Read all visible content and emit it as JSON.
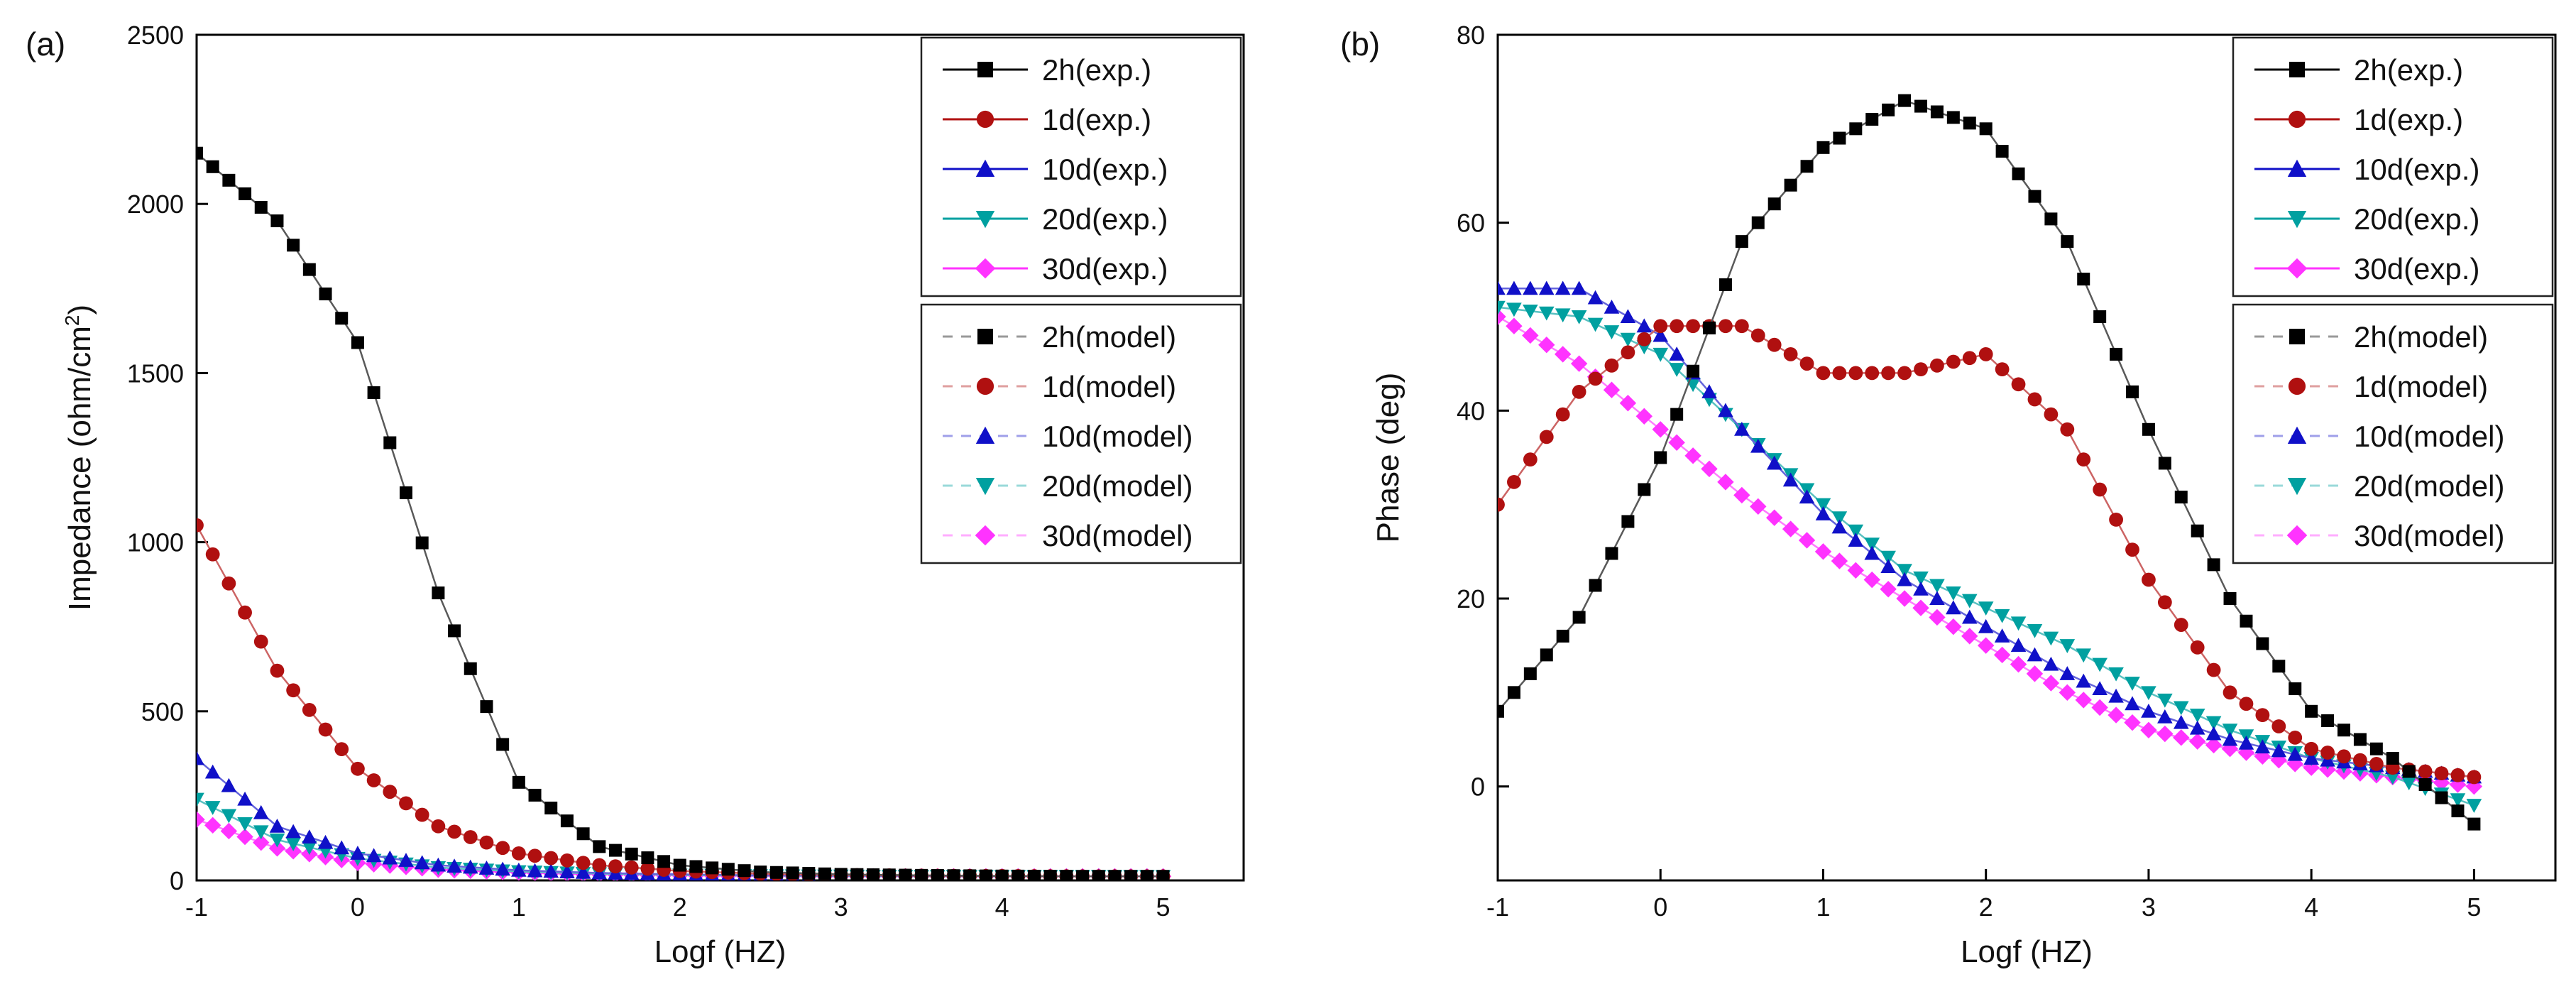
{
  "chart_data": [
    {
      "panel_label": "(a)",
      "type": "scatter",
      "xlabel": "Logf (HZ)",
      "ylabel": "Impedance (ohm/cm",
      "ylabel_superscript": "2",
      "ylabel_suffix": ")",
      "xlim": [
        -1,
        5.5
      ],
      "ylim": [
        0,
        2500
      ],
      "xticks": [
        -1,
        0,
        1,
        2,
        3,
        4,
        5
      ],
      "yticks": [
        0,
        500,
        1000,
        1500,
        2000,
        2500
      ],
      "legend_placement": "top-right",
      "series": [
        {
          "name": "2h(exp.)",
          "model_name": "2h(model)",
          "color": "#000000",
          "marker": "square",
          "x": [
            -1,
            -0.5,
            0,
            0.5,
            1,
            1.5,
            2,
            2.5,
            3,
            3.5,
            4,
            4.5,
            5
          ],
          "y": [
            2150,
            1950,
            1590,
            850,
            290,
            100,
            45,
            25,
            18,
            15,
            13,
            12,
            12
          ]
        },
        {
          "name": "1d(exp.)",
          "model_name": "1d(model)",
          "color": "#b01010",
          "marker": "circle",
          "x": [
            -1,
            -0.5,
            0,
            0.5,
            1,
            1.5,
            2,
            2.5,
            3,
            3.5,
            4,
            4.5,
            5
          ],
          "y": [
            1050,
            620,
            330,
            160,
            80,
            45,
            28,
            20,
            16,
            14,
            13,
            12,
            12
          ]
        },
        {
          "name": "10d(exp.)",
          "model_name": "10d(model)",
          "color": "#1010c8",
          "marker": "triangle-up",
          "x": [
            -1,
            -0.5,
            0,
            0.5,
            1,
            1.5,
            2,
            2.5,
            3,
            3.5,
            4,
            4.5,
            5
          ],
          "y": [
            360,
            160,
            80,
            45,
            30,
            22,
            18,
            15,
            14,
            13,
            12,
            12,
            12
          ]
        },
        {
          "name": "20d(exp.)",
          "model_name": "20d(model)",
          "color": "#00a0a0",
          "marker": "triangle-down",
          "x": [
            -1,
            -0.5,
            0,
            0.5,
            1,
            1.5,
            2,
            2.5,
            3,
            3.5,
            4,
            4.5,
            5
          ],
          "y": [
            240,
            120,
            65,
            38,
            26,
            20,
            16,
            14,
            13,
            12,
            12,
            12,
            12
          ]
        },
        {
          "name": "30d(exp.)",
          "model_name": "30d(model)",
          "color": "#ff33ff",
          "marker": "diamond",
          "x": [
            -1,
            -0.5,
            0,
            0.5,
            1,
            1.5,
            2,
            2.5,
            3,
            3.5,
            4,
            4.5,
            5
          ],
          "y": [
            180,
            95,
            52,
            32,
            23,
            18,
            15,
            13,
            12,
            12,
            12,
            12,
            12
          ]
        }
      ]
    },
    {
      "panel_label": "(b)",
      "type": "scatter",
      "xlabel": "Logf (HZ)",
      "ylabel": "Phase (deg)",
      "xlim": [
        -1,
        5.5
      ],
      "ylim": [
        -10,
        80
      ],
      "xticks": [
        -1,
        0,
        1,
        2,
        3,
        4,
        5
      ],
      "yticks": [
        0,
        20,
        40,
        60,
        80
      ],
      "legend_placement": "top-right",
      "series": [
        {
          "name": "2h(exp.)",
          "model_name": "2h(model)",
          "color": "#000000",
          "marker": "square",
          "x": [
            -1,
            -0.5,
            0,
            0.5,
            1,
            1.5,
            2,
            2.5,
            3,
            3.5,
            4,
            4.5,
            5
          ],
          "y": [
            8,
            18,
            35,
            58,
            68,
            73,
            70,
            58,
            38,
            20,
            8,
            3,
            -4
          ]
        },
        {
          "name": "1d(exp.)",
          "model_name": "1d(model)",
          "color": "#b01010",
          "marker": "circle",
          "x": [
            -1,
            -0.5,
            0,
            0.5,
            1,
            1.5,
            2,
            2.5,
            3,
            3.5,
            4,
            4.5,
            5
          ],
          "y": [
            30,
            42,
            49,
            49,
            44,
            44,
            46,
            38,
            22,
            10,
            4,
            2,
            1
          ]
        },
        {
          "name": "10d(exp.)",
          "model_name": "10d(model)",
          "color": "#1010c8",
          "marker": "triangle-up",
          "x": [
            -1,
            -0.5,
            0,
            0.5,
            1,
            1.5,
            2,
            2.5,
            3,
            3.5,
            4,
            4.5,
            5
          ],
          "y": [
            53,
            53,
            48,
            38,
            29,
            22,
            17,
            12,
            8,
            5,
            3,
            2,
            1
          ]
        },
        {
          "name": "20d(exp.)",
          "model_name": "20d(model)",
          "color": "#00a0a0",
          "marker": "triangle-down",
          "x": [
            -1,
            -0.5,
            0,
            0.5,
            1,
            1.5,
            2,
            2.5,
            3,
            3.5,
            4,
            4.5,
            5
          ],
          "y": [
            51,
            50,
            46,
            38,
            30,
            23,
            19,
            15,
            10,
            6,
            3,
            1,
            -2
          ]
        },
        {
          "name": "30d(exp.)",
          "model_name": "30d(model)",
          "color": "#ff33ff",
          "marker": "diamond",
          "x": [
            -1,
            -0.5,
            0,
            0.5,
            1,
            1.5,
            2,
            2.5,
            3,
            3.5,
            4,
            4.5,
            5
          ],
          "y": [
            50,
            45,
            38,
            31,
            25,
            20,
            15,
            10,
            6,
            4,
            2,
            1,
            0
          ]
        }
      ]
    }
  ]
}
